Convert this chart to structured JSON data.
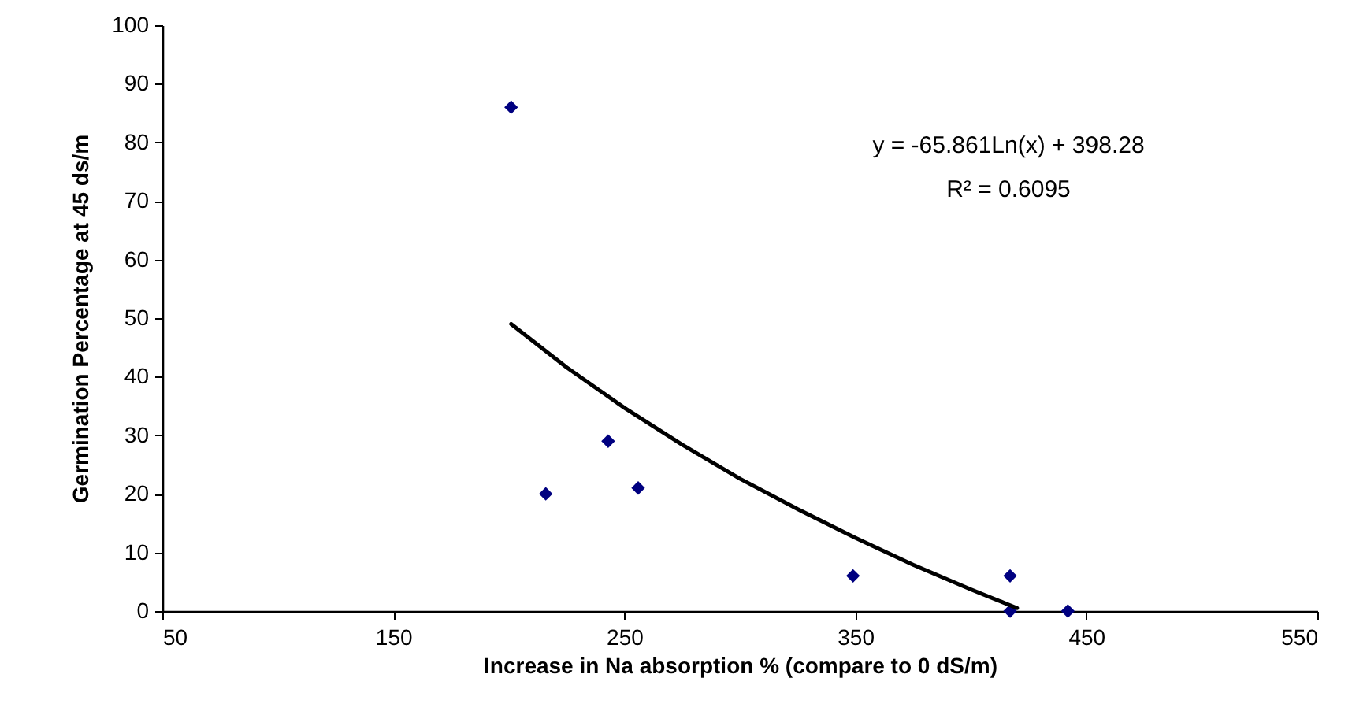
{
  "chart_data": {
    "type": "scatter",
    "xlabel": "Increase in Na absorption % (compare to 0 dS/m)",
    "ylabel": "Germination Percentage at 45 ds/m",
    "xlim": [
      50,
      550
    ],
    "xticks": [
      50,
      150,
      250,
      350,
      450,
      550
    ],
    "ylim": [
      0,
      100
    ],
    "yticks": [
      0,
      10,
      20,
      30,
      40,
      50,
      60,
      70,
      80,
      90,
      100
    ],
    "grid": false,
    "marker": "diamond",
    "series": [
      {
        "color": "#000080",
        "x": [
          201,
          216,
          243,
          256,
          349,
          417,
          417,
          442
        ],
        "values": [
          86,
          20,
          29,
          21,
          6,
          6,
          0,
          0
        ]
      },
      {
        "type": "line",
        "color": "#000000",
        "marker": "none",
        "line_style": "solid",
        "x": [
          201,
          225,
          250,
          275,
          300,
          325,
          350,
          375,
          400,
          420
        ],
        "values": [
          49.0,
          41.6,
          34.7,
          28.4,
          22.6,
          17.4,
          12.5,
          7.9,
          3.7,
          0.5
        ]
      }
    ],
    "annotations": [
      "y = -65.861Ln(x) + 398.28",
      "R² = 0.6095"
    ]
  }
}
